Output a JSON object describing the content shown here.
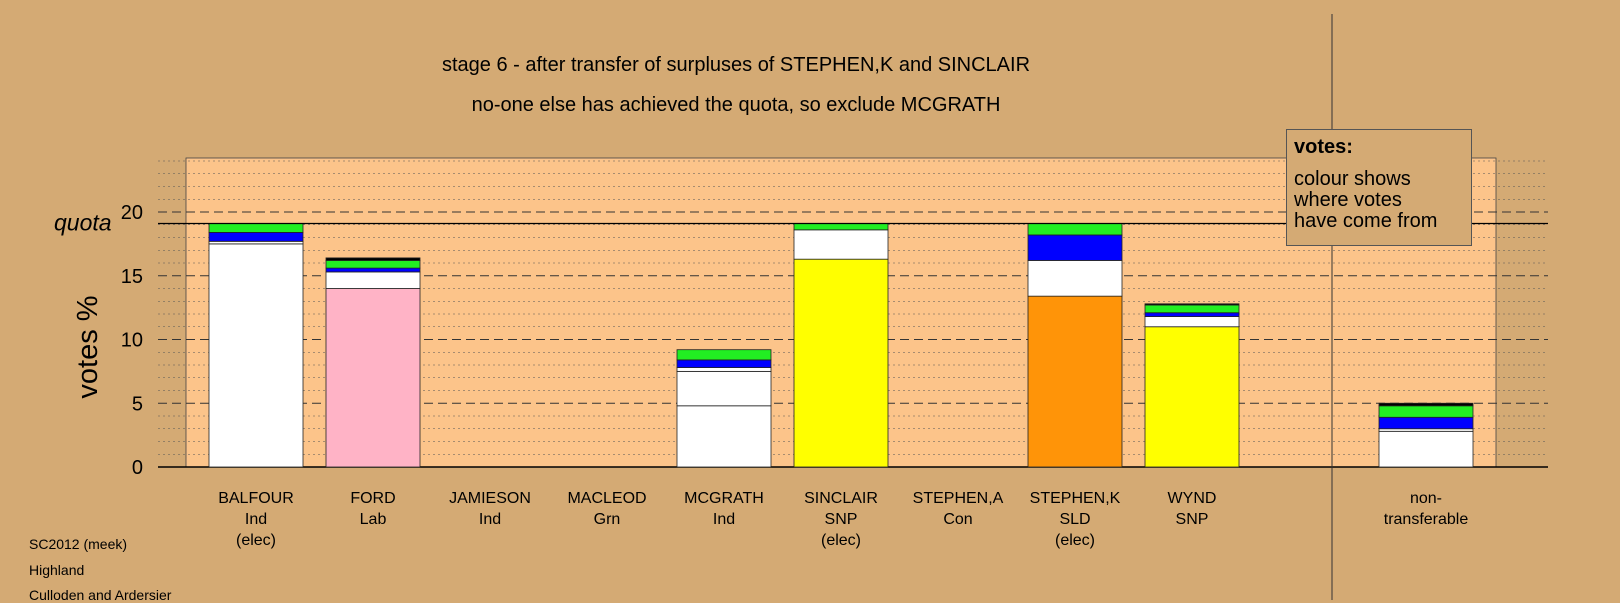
{
  "titles": {
    "line1": "stage 6 - after transfer of surpluses of STEPHEN,K and SINCLAIR",
    "line2": "no-one else has achieved the quota, so exclude MCGRATH"
  },
  "legend": {
    "title": "votes:",
    "lines": [
      "colour shows",
      "where votes",
      "have come from"
    ]
  },
  "footer": [
    "SC2012 (meek)",
    "Highland",
    "Culloden and Ardersier"
  ],
  "colors": {
    "background": "#d4aa74",
    "plot_area": "#fcc48a",
    "Ind": "#ffffff",
    "Lab": "#ffb3c6",
    "SNP": "#ffff00",
    "SLD": "#ff9408",
    "transfer_blue": "#0000ff",
    "transfer_green": "#22ee22"
  },
  "chart_data": {
    "type": "bar",
    "stacked": true,
    "ylabel": "votes %",
    "ylim": [
      0,
      24
    ],
    "yticks": [
      0,
      5,
      10,
      15,
      20
    ],
    "quota": 19.1,
    "quota_label": "quota",
    "grid": "dashed",
    "legend_position": "top-right",
    "categories": [
      {
        "name": "BALFOUR",
        "party": "Ind",
        "note": "(elec)"
      },
      {
        "name": "FORD",
        "party": "Lab",
        "note": ""
      },
      {
        "name": "JAMIESON",
        "party": "Ind",
        "note": ""
      },
      {
        "name": "MACLEOD",
        "party": "Grn",
        "note": ""
      },
      {
        "name": "MCGRATH",
        "party": "Ind",
        "note": ""
      },
      {
        "name": "SINCLAIR",
        "party": "SNP",
        "note": "(elec)"
      },
      {
        "name": "STEPHEN,A",
        "party": "Con",
        "note": ""
      },
      {
        "name": "STEPHEN,K",
        "party": "SLD",
        "note": "(elec)"
      },
      {
        "name": "WYND",
        "party": "SNP",
        "note": ""
      },
      {
        "name": "non-",
        "party": "transferable",
        "note": ""
      }
    ],
    "bars": [
      {
        "segments": [
          {
            "value": 17.5,
            "color": "#ffffff"
          },
          {
            "value": 0.2,
            "color": "#ffffff"
          },
          {
            "value": 0.7,
            "color": "#0000ff"
          },
          {
            "value": 0.7,
            "color": "#22ee22"
          }
        ]
      },
      {
        "segments": [
          {
            "value": 14.0,
            "color": "#ffb3c6"
          },
          {
            "value": 1.3,
            "color": "#ffffff"
          },
          {
            "value": 0.3,
            "color": "#0000ff"
          },
          {
            "value": 0.6,
            "color": "#22ee22"
          },
          {
            "value": 0.2,
            "color": "#000000"
          }
        ]
      },
      {
        "segments": []
      },
      {
        "segments": []
      },
      {
        "segments": [
          {
            "value": 4.8,
            "color": "#ffffff"
          },
          {
            "value": 2.7,
            "color": "#ffffff"
          },
          {
            "value": 0.3,
            "color": "#ffffff"
          },
          {
            "value": 0.6,
            "color": "#0000ff"
          },
          {
            "value": 0.8,
            "color": "#22ee22"
          }
        ]
      },
      {
        "segments": [
          {
            "value": 16.3,
            "color": "#ffff00"
          },
          {
            "value": 2.3,
            "color": "#ffffff"
          },
          {
            "value": 0.5,
            "color": "#22ee22"
          }
        ]
      },
      {
        "segments": []
      },
      {
        "segments": [
          {
            "value": 13.4,
            "color": "#ff9408"
          },
          {
            "value": 2.8,
            "color": "#ffffff"
          },
          {
            "value": 2.0,
            "color": "#0000ff"
          },
          {
            "value": 0.9,
            "color": "#22ee22"
          }
        ]
      },
      {
        "segments": [
          {
            "value": 11.0,
            "color": "#ffff00"
          },
          {
            "value": 0.8,
            "color": "#ffffff"
          },
          {
            "value": 0.3,
            "color": "#0000ff"
          },
          {
            "value": 0.6,
            "color": "#22ee22"
          },
          {
            "value": 0.1,
            "color": "#000000"
          }
        ]
      },
      {
        "segments": [
          {
            "value": 2.8,
            "color": "#ffffff"
          },
          {
            "value": 0.2,
            "color": "#ffffff"
          },
          {
            "value": 0.9,
            "color": "#0000ff"
          },
          {
            "value": 0.9,
            "color": "#22ee22"
          },
          {
            "value": 0.2,
            "color": "#000000"
          }
        ]
      }
    ]
  }
}
